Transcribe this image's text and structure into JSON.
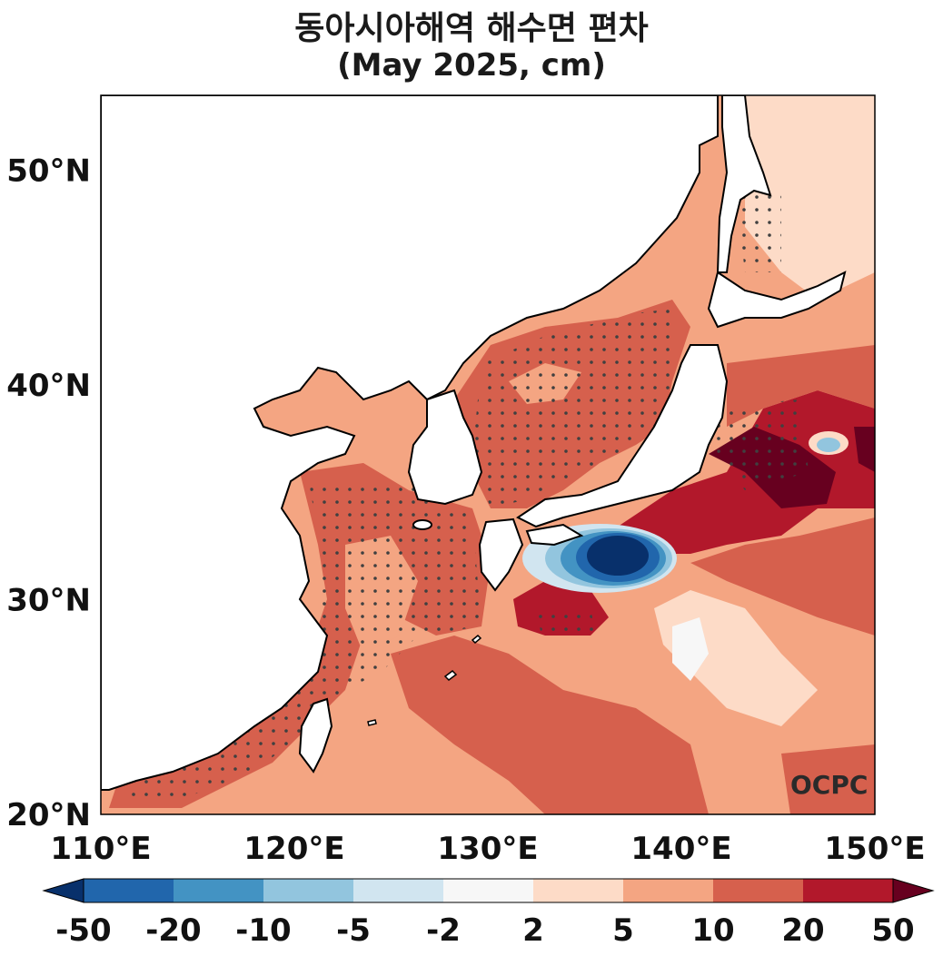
{
  "title": {
    "line1": "동아시아해역 해수면 편차",
    "line2": "(May 2025, cm)"
  },
  "axes": {
    "lat_ticks": [
      "50°N",
      "40°N",
      "30°N",
      "20°N"
    ],
    "lon_ticks": [
      "110°E",
      "120°E",
      "130°E",
      "140°E",
      "150°E"
    ],
    "lat_range": [
      20,
      53.5
    ],
    "lon_range": [
      110,
      150
    ]
  },
  "colorbar": {
    "labels": [
      "-50",
      "-20",
      "-10",
      "-5",
      "-2",
      "2",
      "5",
      "10",
      "20",
      "50"
    ],
    "colors": [
      "#08306b",
      "#2166ac",
      "#4393c3",
      "#92c5de",
      "#d1e5f0",
      "#f7f7f7",
      "#fddbc7",
      "#f4a582",
      "#d6604d",
      "#b2182b",
      "#67001f"
    ],
    "extend": "both"
  },
  "logo": {
    "text": "OCPC"
  },
  "colors": {
    "land": "#ffffff",
    "coast": "#000000",
    "stipple": "#404040"
  }
}
